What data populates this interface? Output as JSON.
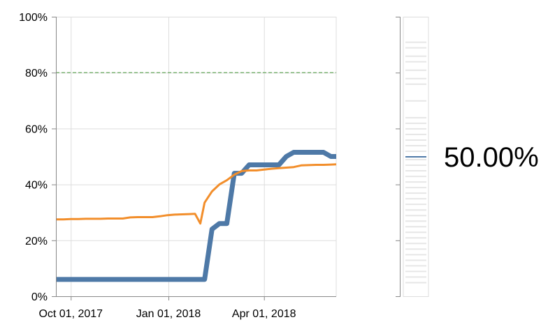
{
  "chart_data": {
    "type": "line",
    "title": "",
    "xlabel": "",
    "ylabel": "",
    "ylim": [
      0,
      100
    ],
    "y_ticks": [
      "0%",
      "20%",
      "40%",
      "60%",
      "80%",
      "100%"
    ],
    "x_tick_labels": [
      "Oct 01, 2017",
      "Jan 01, 2018",
      "Apr 01, 2018"
    ],
    "x_tick_days": [
      0,
      92,
      182
    ],
    "xlim_days": [
      -14,
      250
    ],
    "grid": true,
    "reference_line": {
      "value": 80,
      "color": "#59a14f",
      "style": "dashed"
    },
    "series": [
      {
        "name": "blue-series",
        "color": "#4e79a7",
        "x_days": [
          -14,
          -7,
          0,
          7,
          14,
          21,
          28,
          35,
          42,
          49,
          56,
          63,
          70,
          77,
          84,
          91,
          98,
          105,
          112,
          119,
          126,
          133,
          140,
          147,
          154,
          161,
          168,
          175,
          182,
          189,
          196,
          203,
          210,
          217,
          224,
          231,
          238,
          245,
          250
        ],
        "values": [
          6,
          6,
          6,
          6,
          6,
          6,
          6,
          6,
          6,
          6,
          6,
          6,
          6,
          6,
          6,
          6,
          6,
          6,
          6,
          6,
          6,
          24,
          26,
          26,
          44,
          44,
          47,
          47,
          47,
          47,
          47,
          50,
          51.5,
          51.5,
          51.5,
          51.5,
          51.5,
          50,
          50
        ]
      },
      {
        "name": "orange-series",
        "color": "#f28e2b",
        "x_days": [
          -14,
          -7,
          0,
          7,
          14,
          21,
          28,
          35,
          42,
          49,
          56,
          63,
          70,
          77,
          84,
          91,
          98,
          105,
          112,
          117,
          122,
          126,
          133,
          140,
          147,
          154,
          161,
          168,
          175,
          182,
          189,
          196,
          203,
          210,
          217,
          224,
          231,
          238,
          245,
          250
        ],
        "values": [
          27.5,
          27.5,
          27.6,
          27.6,
          27.7,
          27.7,
          27.7,
          27.8,
          27.8,
          27.8,
          28.2,
          28.3,
          28.3,
          28.3,
          28.6,
          29,
          29.2,
          29.3,
          29.4,
          29.5,
          26,
          33.5,
          37.5,
          40,
          41.5,
          43.5,
          44.8,
          45,
          45,
          45.3,
          45.6,
          45.8,
          46,
          46.2,
          46.8,
          46.9,
          47,
          47,
          47.1,
          47.2
        ]
      }
    ],
    "side_panel": {
      "value_label": "50.00%",
      "marker_color": "#4e79a7",
      "highlight_value": 50,
      "faint_marks": [
        5,
        7,
        9,
        11,
        13,
        15,
        17,
        19,
        21,
        23,
        25,
        27,
        29,
        31,
        33,
        35,
        37,
        39,
        41,
        43,
        45,
        47,
        49,
        52,
        54,
        56,
        58,
        60,
        62,
        64,
        70,
        76,
        78,
        81,
        84,
        86,
        89,
        91
      ]
    }
  }
}
